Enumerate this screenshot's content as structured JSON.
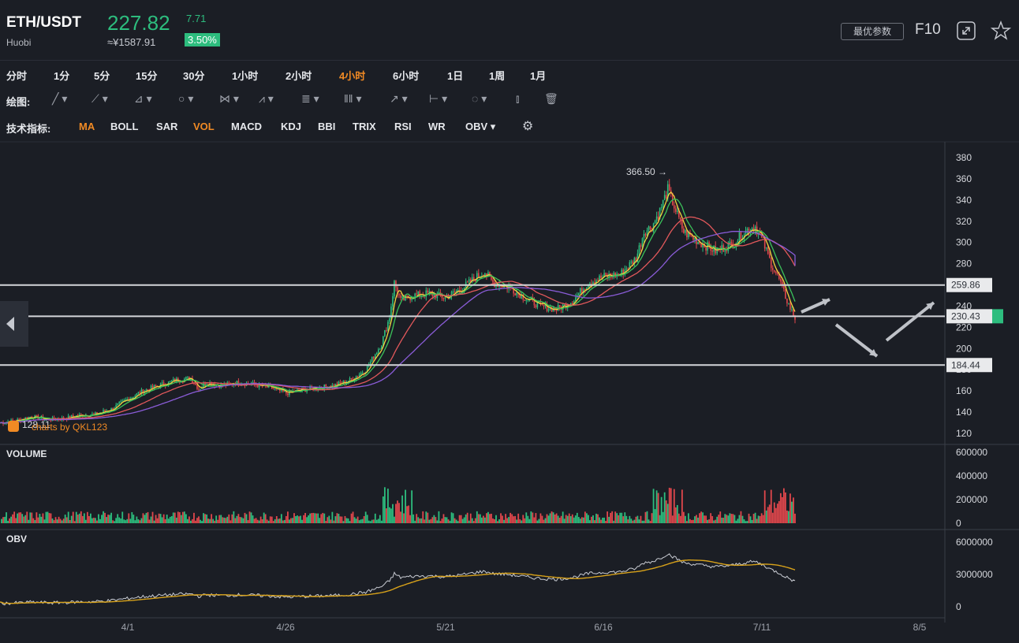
{
  "header": {
    "pair": "ETH/USDT",
    "exchange": "Huobi",
    "price": "227.82",
    "change": "7.71",
    "cny_price": "≈¥1587.91",
    "change_pct": "3.50%",
    "best_params_label": "最优参数",
    "f10_label": "F10",
    "expand_icon": "expand-icon",
    "star_icon": "star-icon"
  },
  "timeframes": [
    "分时",
    "1分",
    "5分",
    "15分",
    "30分",
    "1小时",
    "2小时",
    "4小时",
    "6小时",
    "1日",
    "1周",
    "1月"
  ],
  "active_timeframe": "4小时",
  "drawing": {
    "label": "绘图:",
    "tools": [
      "trend-line-icon",
      "ray-icon",
      "channel-icon",
      "circle-icon",
      "zigzag-icon",
      "pattern-icon",
      "fib-icon",
      "gann-icon",
      "arrow-icon",
      "measure-icon",
      "annotation-icon",
      "candle-toggle-icon",
      "delete-icon"
    ]
  },
  "indicators": {
    "label": "技术指标:",
    "items": [
      "MA",
      "BOLL",
      "SAR",
      "VOL",
      "MACD",
      "KDJ",
      "BBI",
      "TRIX",
      "RSI",
      "WR",
      "OBV ▾"
    ],
    "active": [
      "MA",
      "VOL"
    ],
    "settings_icon": "gear-icon"
  },
  "colors": {
    "up": "#2dbd7e",
    "down": "#e0474c",
    "accent": "#f08a24",
    "ma5": "#f5d33f",
    "ma10": "#3bc25a",
    "ma30": "#e2585b",
    "ma60": "#8a5cd8",
    "obv_line": "#c9ccd3",
    "obv_ma": "#d8a21a",
    "level_line": "#d4d6da",
    "arrow": "#bfc2c8"
  },
  "chart_data": [
    {
      "type": "candlestick",
      "title": "",
      "x_ticks": [
        "4/1",
        "4/26",
        "5/21",
        "6/16",
        "7/11",
        "8/5"
      ],
      "ylim": [
        110,
        390
      ],
      "y_ticks": [
        120,
        140,
        160,
        180,
        200,
        220,
        240,
        260,
        280,
        300,
        320,
        340,
        360,
        380
      ],
      "high_label": "366.50 →",
      "low_label": "128.11",
      "current_price_tag": "230.43",
      "horizontal_levels": [
        {
          "value": 259.86,
          "label": "259.86"
        },
        {
          "value": 230.43,
          "label": "230.43"
        },
        {
          "value": 184.44,
          "label": "184.44"
        }
      ],
      "watermark": "charts by QKL123",
      "price_path": [
        [
          0,
          130
        ],
        [
          10,
          132
        ],
        [
          20,
          136
        ],
        [
          30,
          133
        ],
        [
          40,
          134
        ],
        [
          50,
          137
        ],
        [
          60,
          138
        ],
        [
          70,
          143
        ],
        [
          80,
          152
        ],
        [
          90,
          160
        ],
        [
          100,
          165
        ],
        [
          110,
          170
        ],
        [
          120,
          172
        ],
        [
          125,
          162
        ],
        [
          130,
          168
        ],
        [
          140,
          165
        ],
        [
          150,
          168
        ],
        [
          160,
          166
        ],
        [
          170,
          163
        ],
        [
          180,
          158
        ],
        [
          190,
          161
        ],
        [
          200,
          163
        ],
        [
          210,
          165
        ],
        [
          220,
          170
        ],
        [
          230,
          180
        ],
        [
          240,
          205
        ],
        [
          245,
          230
        ],
        [
          248,
          262
        ],
        [
          252,
          245
        ],
        [
          260,
          250
        ],
        [
          270,
          252
        ],
        [
          280,
          248
        ],
        [
          290,
          256
        ],
        [
          300,
          268
        ],
        [
          305,
          272
        ],
        [
          310,
          262
        ],
        [
          320,
          258
        ],
        [
          330,
          248
        ],
        [
          340,
          240
        ],
        [
          350,
          237
        ],
        [
          360,
          245
        ],
        [
          370,
          262
        ],
        [
          380,
          268
        ],
        [
          390,
          270
        ],
        [
          400,
          285
        ],
        [
          405,
          310
        ],
        [
          410,
          315
        ],
        [
          415,
          330
        ],
        [
          420,
          350
        ],
        [
          425,
          330
        ],
        [
          430,
          310
        ],
        [
          440,
          300
        ],
        [
          450,
          292
        ],
        [
          460,
          298
        ],
        [
          470,
          312
        ],
        [
          475,
          315
        ],
        [
          480,
          300
        ],
        [
          485,
          280
        ],
        [
          490,
          265
        ],
        [
          495,
          245
        ],
        [
          500,
          228
        ]
      ],
      "ma_series": [
        {
          "name": "MA5",
          "color": "#f5d33f"
        },
        {
          "name": "MA10",
          "color": "#3bc25a"
        },
        {
          "name": "MA30",
          "color": "#e2585b"
        },
        {
          "name": "MA60",
          "color": "#8a5cd8"
        }
      ]
    },
    {
      "type": "bar",
      "title": "VOLUME",
      "ylim": [
        0,
        600000
      ],
      "y_ticks": [
        "600000",
        "400000",
        "200000",
        "0"
      ],
      "y_tick_values": [
        600000,
        400000,
        200000,
        0
      ]
    },
    {
      "type": "line",
      "title": "OBV",
      "ylim": [
        0,
        6000000
      ],
      "y_ticks": [
        "6000000",
        "3000000",
        "0"
      ],
      "y_tick_values": [
        6000000,
        3000000,
        0
      ]
    }
  ]
}
